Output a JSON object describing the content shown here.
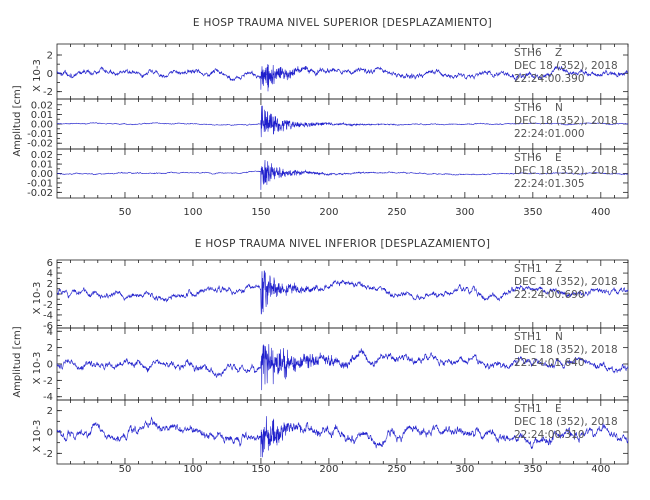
{
  "chart_data": [
    {
      "type": "line",
      "title": "E HOSP TRAUMA NIVEL SUPERIOR [DESPLAZAMIENTO]",
      "ylabel": "Amplitud [cm]",
      "xlim": [
        0,
        420
      ],
      "x_ticks": [
        50,
        100,
        150,
        200,
        250,
        300,
        350,
        400
      ],
      "grid": false,
      "series_color": "#1f1fcc",
      "panels": [
        {
          "station": "STH6",
          "component": "Z",
          "date": "DEC 18 (352), 2018",
          "time": "22:24:00.390",
          "scale_label": "X 10-3",
          "ylim": [
            -2.8,
            3.2
          ],
          "ytick_labels": [
            "2",
            "0",
            "-2"
          ],
          "ytick_values": [
            2,
            0,
            -2
          ],
          "amplitude": 0.45,
          "event_peak": 2.6,
          "event_start": 150,
          "event_decay": 10
        },
        {
          "station": "STH6",
          "component": "N",
          "date": "DEC 18 (352), 2018",
          "time": "22:24:01.000",
          "scale_label": "",
          "ylim": [
            -0.026,
            0.026
          ],
          "ytick_labels": [
            "0.02",
            "0.01",
            "0.00",
            "-0.01",
            "-0.02"
          ],
          "ytick_values": [
            0.02,
            0.01,
            0.0,
            -0.01,
            -0.02
          ],
          "amplitude": 0.0008,
          "event_peak": 0.022,
          "event_start": 150,
          "event_decay": 12
        },
        {
          "station": "STH6",
          "component": "E",
          "date": "DEC 18 (352), 2018",
          "time": "22:24:01.305",
          "scale_label": "",
          "ylim": [
            -0.026,
            0.026
          ],
          "ytick_labels": [
            "0.02",
            "0.01",
            "0.00",
            "-0.01",
            "-0.02"
          ],
          "ytick_values": [
            0.02,
            0.01,
            0.0,
            -0.01,
            -0.02
          ],
          "amplitude": 0.0009,
          "event_peak": 0.021,
          "event_start": 150,
          "event_decay": 10
        }
      ]
    },
    {
      "type": "line",
      "title": "E HOSP TRAUMA NIVEL INFERIOR [DESPLAZAMIENTO]",
      "ylabel": "Amplitud [cm]",
      "xlim": [
        0,
        420
      ],
      "x_ticks": [
        50,
        100,
        150,
        200,
        250,
        300,
        350,
        400
      ],
      "grid": false,
      "series_color": "#1f1fcc",
      "panels": [
        {
          "station": "STH1",
          "component": "Z",
          "date": "DEC 18 (352), 2018",
          "time": "22:24:00.690",
          "scale_label": "X 10-3",
          "ylim": [
            -6.5,
            6.5
          ],
          "ytick_labels": [
            "6",
            "4",
            "2",
            "0",
            "-2",
            "-4",
            "-6"
          ],
          "ytick_values": [
            6,
            4,
            2,
            0,
            -2,
            -4,
            -6
          ],
          "amplitude": 0.9,
          "event_peak": 5.8,
          "event_start": 150,
          "event_decay": 9
        },
        {
          "station": "STH1",
          "component": "N",
          "date": "DEC 18 (352), 2018",
          "time": "22:24:01.640",
          "scale_label": "X 10-3",
          "ylim": [
            -4.4,
            4.4
          ],
          "ytick_labels": [
            "4",
            "2",
            "0",
            "-2",
            "-4"
          ],
          "ytick_values": [
            4,
            2,
            0,
            -2,
            -4
          ],
          "amplitude": 0.7,
          "event_peak": 4.0,
          "event_start": 150,
          "event_decay": 18
        },
        {
          "station": "STH1",
          "component": "E",
          "date": "DEC 18 (352), 2018",
          "time": "22:24:00.310",
          "scale_label": "X 10-3",
          "ylim": [
            -3.0,
            3.0
          ],
          "ytick_labels": [
            "2",
            "0",
            "-2"
          ],
          "ytick_values": [
            2,
            0,
            -2
          ],
          "amplitude": 0.65,
          "event_peak": 2.7,
          "event_start": 150,
          "event_decay": 10
        }
      ]
    }
  ]
}
